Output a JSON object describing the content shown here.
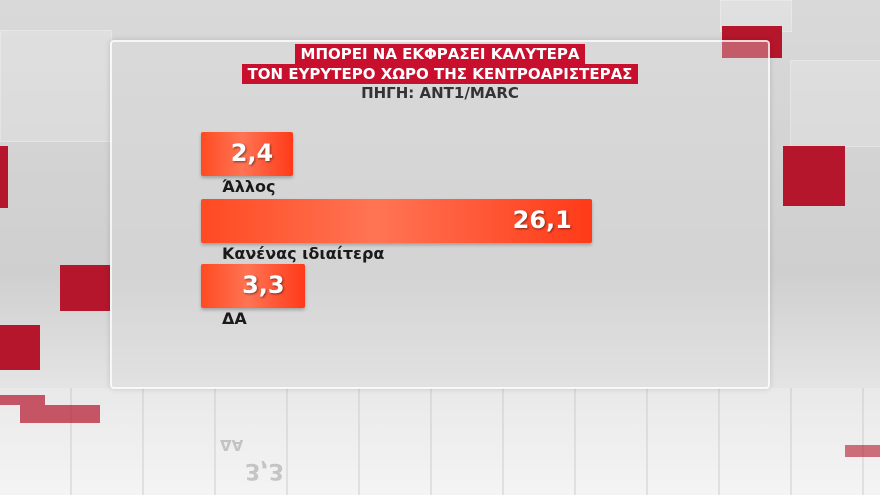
{
  "header": {
    "title_lines": [
      "ΜΠΟΡΕΙ ΝΑ ΕΚΦΡΑΣΕΙ ΚΑΛΥΤΕΡΑ",
      "ΤΟΝ ΕΥΡΥΤΕΡΟ ΧΩΡΟ ΤΗΣ ΚΕΝΤΡΟΑΡΙΣΤΕΡΑΣ"
    ],
    "source": "ΠΗΓΗ: ANT1/MARC"
  },
  "colors": {
    "bar": "#ff4a22",
    "title_bg": "#c8102e",
    "accent_tiles": "#b5162b"
  },
  "chart_data": {
    "type": "bar",
    "orientation": "horizontal",
    "title": "ΜΠΟΡΕΙ ΝΑ ΕΚΦΡΑΣΕΙ ΚΑΛΥΤΕΡΑ ΤΟΝ ΕΥΡΥΤΕΡΟ ΧΩΡΟ ΤΗΣ ΚΕΝΤΡΟΑΡΙΣΤΕΡΑΣ",
    "categories": [
      "Άλλος",
      "Κανένας ιδιαίτερα",
      "ΔΑ"
    ],
    "values": [
      2.4,
      26.1,
      3.3
    ],
    "value_labels": [
      "2,4",
      "26,1",
      "3,3"
    ],
    "grid": false
  }
}
